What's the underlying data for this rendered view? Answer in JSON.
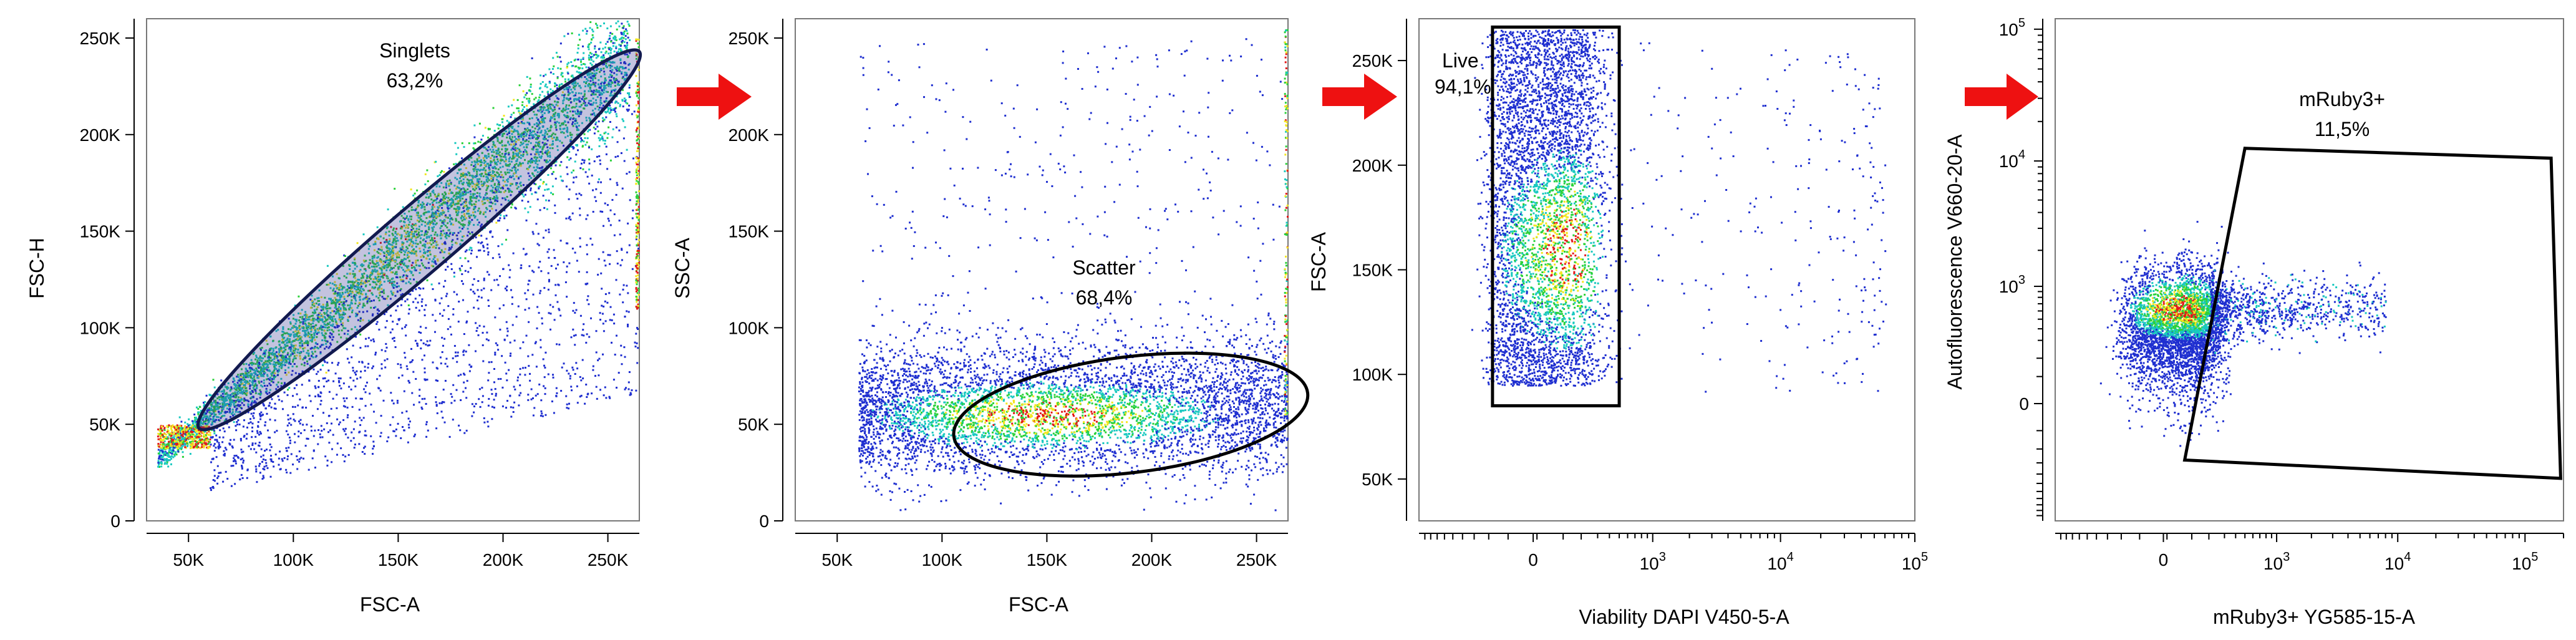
{
  "colors": {
    "density_low": "#1f2fd0",
    "density_mid": "#19c9c0",
    "density_mid2": "#2bd13a",
    "density_high": "#f3e61f",
    "density_peak": "#e31818",
    "arrow": "#ee1111",
    "gate": "#000000"
  },
  "chart_data": [
    {
      "type": "scatter",
      "xlabel": "FSC-A",
      "ylabel": "FSC-H",
      "xlim": [
        30000,
        265000
      ],
      "ylim": [
        0,
        260000
      ],
      "x_ticks": [
        50000,
        100000,
        150000,
        200000,
        250000
      ],
      "x_tick_labels": [
        "50K",
        "100K",
        "150K",
        "200K",
        "250K"
      ],
      "y_ticks": [
        0,
        50000,
        100000,
        150000,
        200000,
        250000
      ],
      "y_tick_labels": [
        "0",
        "50K",
        "100K",
        "150K",
        "200K",
        "250K"
      ],
      "gate": {
        "name": "Singlets",
        "percent": "63,2%",
        "shape": "ellipse",
        "from": [
          55000,
          48000
        ],
        "to": [
          265000,
          243000
        ],
        "minor_axis_data": 34000
      }
    },
    {
      "type": "scatter",
      "xlabel": "FSC-A",
      "ylabel": "SSC-A",
      "xlim": [
        30000,
        265000
      ],
      "ylim": [
        0,
        260000
      ],
      "x_ticks": [
        50000,
        100000,
        150000,
        200000,
        250000
      ],
      "x_tick_labels": [
        "50K",
        "100K",
        "150K",
        "200K",
        "250K"
      ],
      "y_ticks": [
        0,
        50000,
        100000,
        150000,
        200000,
        250000
      ],
      "y_tick_labels": [
        "0",
        "50K",
        "100K",
        "150K",
        "200K",
        "250K"
      ],
      "gate": {
        "name": "Scatter",
        "percent": "68,4%",
        "shape": "ellipse",
        "center": [
          190000,
          55000
        ],
        "radius": [
          85000,
          30000
        ],
        "rotation_deg": -7
      }
    },
    {
      "type": "scatter",
      "xlabel": "Viability DAPI V450-5-A",
      "ylabel": "FSC-A",
      "x_scale": "biexponential",
      "xlim": [
        -900,
        100000
      ],
      "ylim": [
        30000,
        270000
      ],
      "x_ticks": [
        0,
        1000,
        10000,
        100000
      ],
      "x_tick_labels": [
        "0",
        "10^3",
        "10^4",
        "10^5"
      ],
      "y_ticks": [
        50000,
        100000,
        150000,
        200000,
        250000
      ],
      "y_tick_labels": [
        "50K",
        "100K",
        "150K",
        "200K",
        "250K"
      ],
      "gate": {
        "name": "Live",
        "percent": "94,1%",
        "shape": "rectangle",
        "x": [
          -150,
          500
        ],
        "y": [
          85000,
          266000
        ]
      }
    },
    {
      "type": "scatter",
      "xlabel": "mRuby3+ YG585-15-A",
      "ylabel": "Autofluorescence V660-20-A",
      "x_scale": "biexponential",
      "y_scale": "biexponential",
      "xlim": [
        -900,
        200000
      ],
      "ylim": [
        -1000,
        120000
      ],
      "x_ticks": [
        0,
        1000,
        10000,
        100000
      ],
      "x_tick_labels": [
        "0",
        "10^3",
        "10^4",
        "10^5"
      ],
      "y_ticks": [
        0,
        1000,
        10000,
        100000
      ],
      "y_tick_labels": [
        "0",
        "10^3",
        "10^4",
        "10^5"
      ],
      "gate": {
        "name": "mRuby3+",
        "percent": "11,5%",
        "shape": "polygon",
        "points": [
          [
            500,
            12500
          ],
          [
            160000,
            10500
          ],
          [
            190000,
            -400
          ],
          [
            70,
            -250
          ]
        ]
      }
    }
  ]
}
